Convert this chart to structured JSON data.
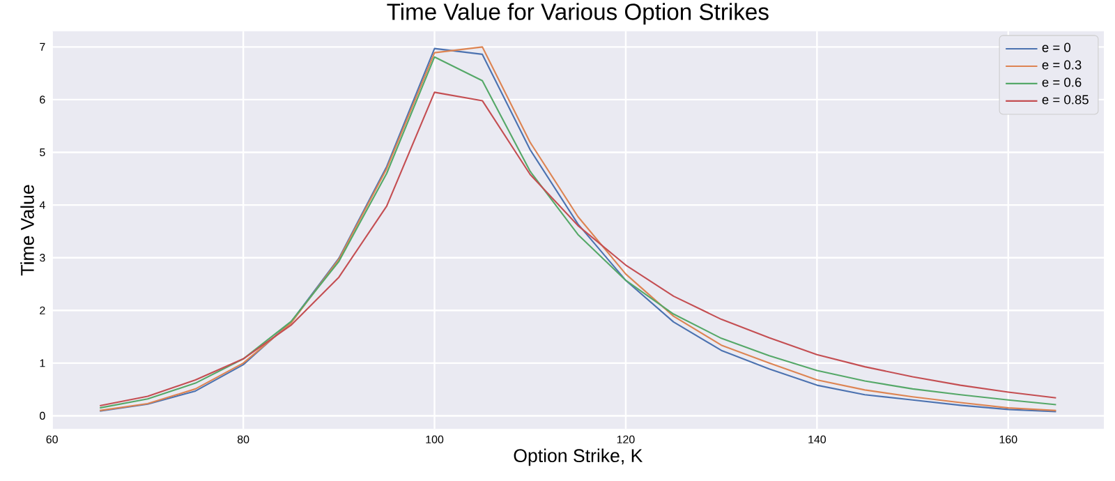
{
  "chart_data": {
    "type": "line",
    "title": "Time Value for Various Option Strikes",
    "xlabel": "Option Strike, K",
    "ylabel": "Time Value",
    "x": [
      65,
      70,
      75,
      80,
      85,
      90,
      95,
      100,
      105,
      110,
      115,
      120,
      125,
      130,
      135,
      140,
      145,
      150,
      155,
      160,
      165
    ],
    "series": [
      {
        "name": "e = 0",
        "color": "#4c72b0",
        "values": [
          0.09,
          0.22,
          0.47,
          0.97,
          1.78,
          2.99,
          4.73,
          6.97,
          6.86,
          5.05,
          3.64,
          2.57,
          1.78,
          1.24,
          0.89,
          0.58,
          0.4,
          0.3,
          0.2,
          0.12,
          0.08
        ]
      },
      {
        "name": "e = 0.3",
        "color": "#dd8452",
        "values": [
          0.1,
          0.23,
          0.51,
          1.0,
          1.76,
          2.97,
          4.69,
          6.89,
          7.0,
          5.19,
          3.78,
          2.69,
          1.89,
          1.34,
          1.0,
          0.68,
          0.49,
          0.36,
          0.25,
          0.15,
          0.1
        ]
      },
      {
        "name": "e = 0.6",
        "color": "#55a868",
        "values": [
          0.15,
          0.32,
          0.62,
          1.08,
          1.79,
          2.93,
          4.6,
          6.81,
          6.36,
          4.64,
          3.44,
          2.57,
          1.93,
          1.47,
          1.14,
          0.86,
          0.66,
          0.51,
          0.4,
          0.3,
          0.21
        ]
      },
      {
        "name": "e = 0.85",
        "color": "#c44e52",
        "values": [
          0.19,
          0.37,
          0.68,
          1.08,
          1.72,
          2.63,
          3.98,
          6.14,
          5.98,
          4.58,
          3.61,
          2.86,
          2.27,
          1.83,
          1.48,
          1.16,
          0.93,
          0.74,
          0.58,
          0.45,
          0.34
        ]
      }
    ],
    "xlim": [
      60,
      170
    ],
    "ylim": [
      -0.25,
      7.3
    ],
    "xticks": [
      60,
      80,
      100,
      120,
      140,
      160
    ],
    "yticks": [
      0,
      1,
      2,
      3,
      4,
      5,
      6,
      7
    ],
    "grid": true,
    "legend": "top right",
    "marker": "none",
    "line_style": "solid"
  }
}
